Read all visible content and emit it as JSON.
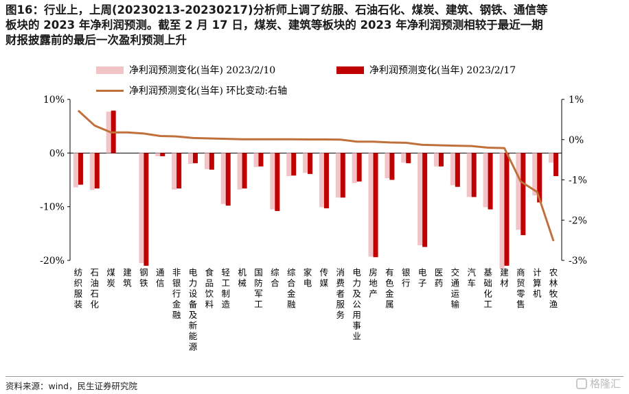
{
  "title_lines": [
    "图16：行业上，上周(20230213-20230217)分析师上调了纺服、石油石化、煤炭、建筑、钢铁、通信等",
    "板块的 2023 年净利润预测。截至 2 月 17 日，煤炭、建筑等板块的 2023 年净利润预测相较于最近一期",
    "财报披露前的最后一次盈利预测上升"
  ],
  "source": "资料来源：wind，民生证券研究院",
  "watermark": "格隆汇",
  "colors": {
    "series1": "#f2c4c8",
    "series2": "#c00000",
    "line": "#c0703a"
  },
  "chart_data": {
    "type": "bar",
    "categories": [
      "纺织服装",
      "石油石化",
      "煤炭",
      "建筑",
      "钢铁",
      "通信",
      "非银行金融",
      "电力设备及新能源",
      "食品饮料",
      "轻工制造",
      "机械",
      "国防军工",
      "综合",
      "综合金融",
      "家电",
      "传媒",
      "消费者服务",
      "电力及公用事业",
      "房地产",
      "有色金属",
      "银行",
      "电子",
      "医药",
      "交通运输",
      "汽车",
      "基础化工",
      "建材",
      "商贸零售",
      "计算机",
      "农林牧渔"
    ],
    "series": [
      {
        "name": "净利润预测变化(当年) 2023/2/10",
        "axis": "left",
        "values": [
          -6.4,
          -6.9,
          7.7,
          0,
          -20.5,
          -0.6,
          -6.8,
          -2.0,
          -3.0,
          -9.5,
          -6.8,
          -2.6,
          -10.5,
          -4.3,
          -3.7,
          -10.1,
          -8.3,
          -5.6,
          -19.3,
          -4.7,
          -1.8,
          -17.2,
          -2.5,
          -6.0,
          -8.2,
          -10.1,
          -21.5,
          -14.3,
          -7.9,
          -1.8
        ]
      },
      {
        "name": "净利润预测变化(当年) 2023/2/17",
        "axis": "left",
        "values": [
          -5.9,
          -6.6,
          7.9,
          0,
          -21.0,
          -0.6,
          -6.6,
          -1.9,
          -3.1,
          -9.8,
          -6.6,
          -2.5,
          -10.8,
          -4.2,
          -3.9,
          -10.3,
          -8.3,
          -5.3,
          -19.4,
          -5.0,
          -1.9,
          -17.5,
          -2.5,
          -6.3,
          -8.2,
          -10.5,
          -21.0,
          -15.3,
          -9.2,
          -4.3
        ]
      },
      {
        "name": "净利润预测变化(当年) 环比变动:右轴",
        "axis": "right",
        "type": "line",
        "values": [
          0.72,
          0.35,
          0.18,
          0.18,
          0.15,
          0.09,
          0.08,
          0.04,
          0.03,
          0.02,
          0.01,
          0.01,
          0.01,
          0.01,
          0.005,
          0.005,
          0.0,
          -0.05,
          -0.05,
          -0.07,
          -0.08,
          -0.13,
          -0.14,
          -0.15,
          -0.16,
          -0.2,
          -0.21,
          -1.04,
          -1.3,
          -2.52
        ]
      }
    ],
    "ylim": [
      -20,
      10
    ],
    "y_ticks": [
      "10%",
      "0%",
      "-10%",
      "-20%"
    ],
    "y2lim": [
      -3,
      1
    ],
    "y2_ticks": [
      "1%",
      "0%",
      "-1%",
      "-2%",
      "-3%"
    ],
    "legend_position": "top"
  }
}
